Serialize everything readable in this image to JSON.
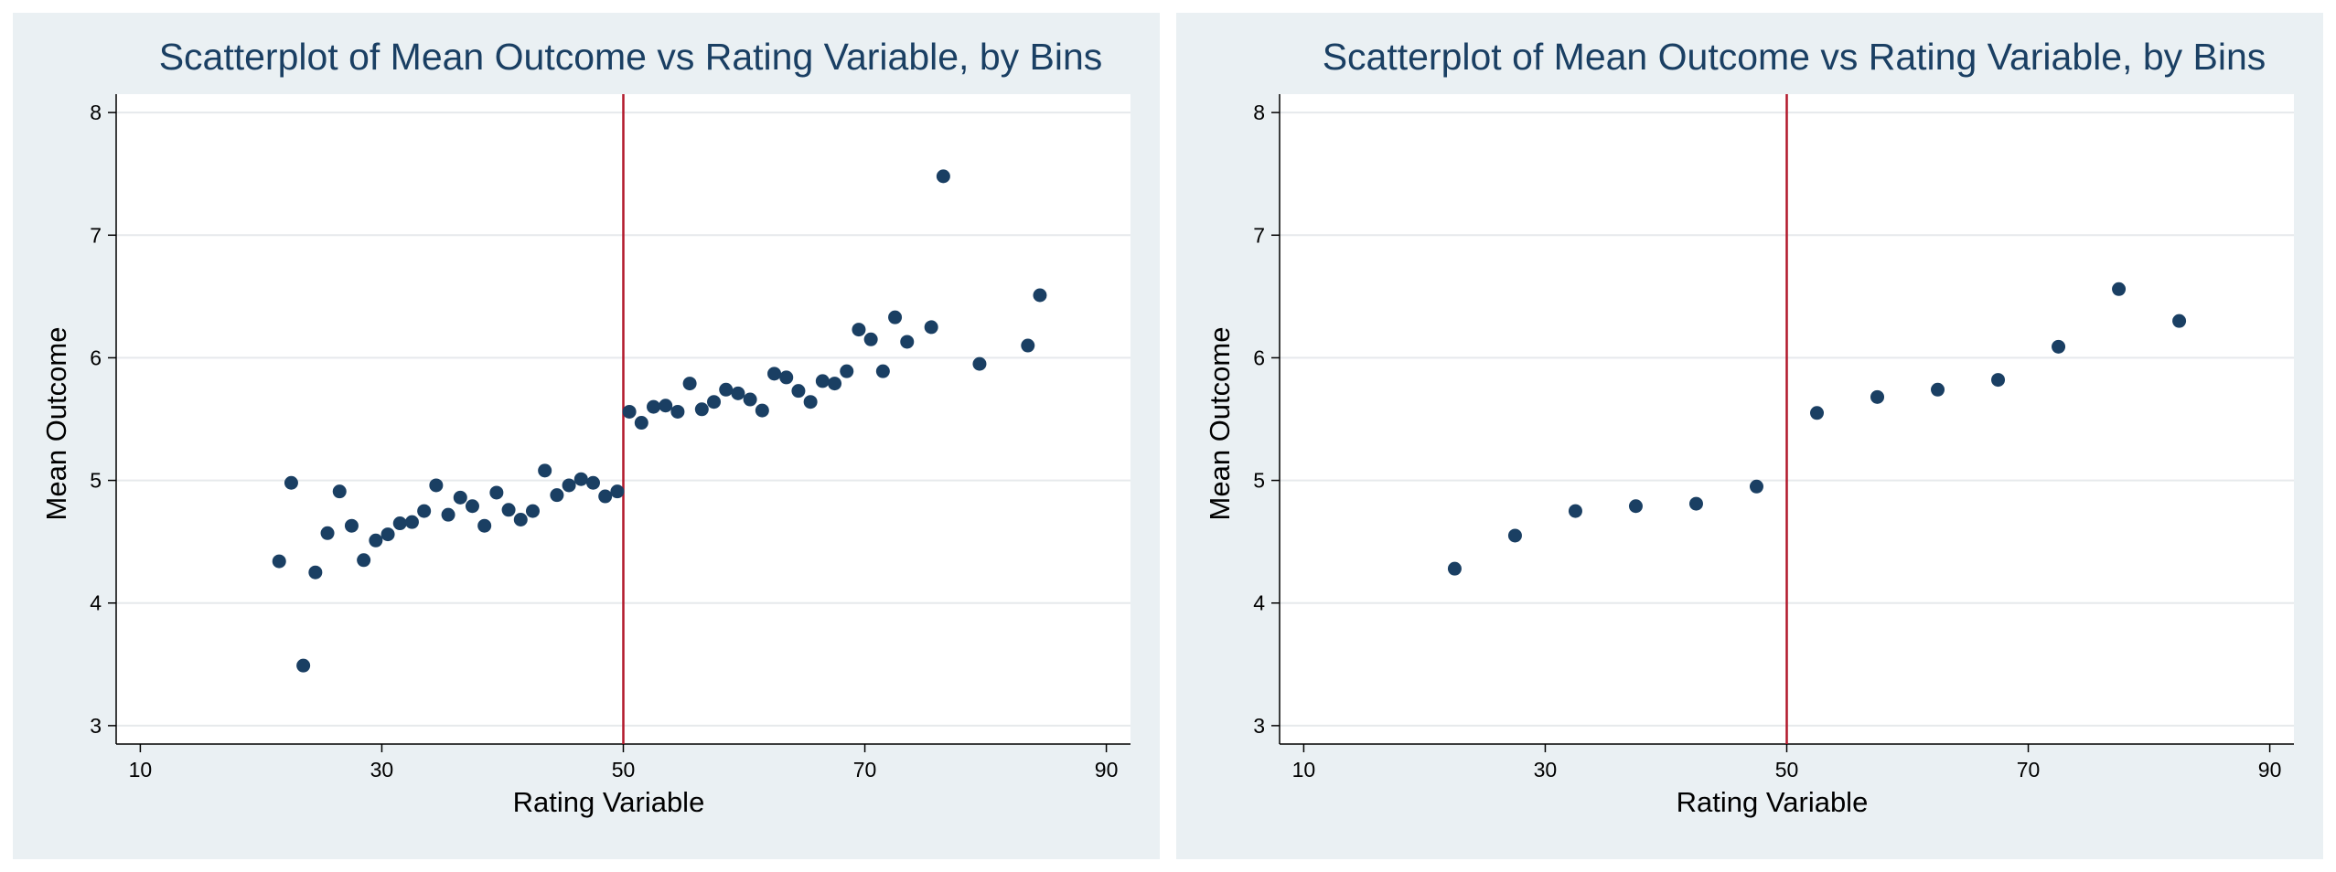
{
  "chart_data": [
    {
      "type": "scatter",
      "title": "Scatterplot of Mean Outcome vs Rating Variable, by Bins",
      "xlabel": "Rating Variable",
      "ylabel": "Mean Outcome",
      "xlim": [
        8,
        92
      ],
      "ylim": [
        2.85,
        8.15
      ],
      "x_ticks": [
        10,
        30,
        50,
        70,
        90
      ],
      "y_ticks": [
        3,
        4,
        5,
        6,
        7,
        8
      ],
      "cutoff": 50,
      "grid": true,
      "legend": "none",
      "colors": {
        "points": "#1A3F63",
        "cutoff_line": "#B2182B",
        "title": "#1A3F63",
        "grid": "#E6E9EC",
        "panel_bg": "#EAF0F3"
      },
      "points": [
        [
          21.5,
          4.34
        ],
        [
          22.5,
          4.98
        ],
        [
          23.5,
          3.49
        ],
        [
          24.5,
          4.25
        ],
        [
          25.5,
          4.57
        ],
        [
          26.5,
          4.91
        ],
        [
          27.5,
          4.63
        ],
        [
          28.5,
          4.35
        ],
        [
          29.5,
          4.51
        ],
        [
          30.5,
          4.56
        ],
        [
          31.5,
          4.65
        ],
        [
          32.5,
          4.66
        ],
        [
          33.5,
          4.75
        ],
        [
          34.5,
          4.96
        ],
        [
          35.5,
          4.72
        ],
        [
          36.5,
          4.86
        ],
        [
          37.5,
          4.79
        ],
        [
          38.5,
          4.63
        ],
        [
          39.5,
          4.9
        ],
        [
          40.5,
          4.76
        ],
        [
          41.5,
          4.68
        ],
        [
          42.5,
          4.75
        ],
        [
          43.5,
          5.08
        ],
        [
          44.5,
          4.88
        ],
        [
          45.5,
          4.96
        ],
        [
          46.5,
          5.01
        ],
        [
          47.5,
          4.98
        ],
        [
          48.5,
          4.87
        ],
        [
          49.5,
          4.91
        ],
        [
          50.5,
          5.56
        ],
        [
          51.5,
          5.47
        ],
        [
          52.5,
          5.6
        ],
        [
          53.5,
          5.61
        ],
        [
          54.5,
          5.56
        ],
        [
          55.5,
          5.79
        ],
        [
          56.5,
          5.58
        ],
        [
          57.5,
          5.64
        ],
        [
          58.5,
          5.74
        ],
        [
          59.5,
          5.71
        ],
        [
          60.5,
          5.66
        ],
        [
          61.5,
          5.57
        ],
        [
          62.5,
          5.87
        ],
        [
          63.5,
          5.84
        ],
        [
          64.5,
          5.73
        ],
        [
          65.5,
          5.64
        ],
        [
          66.5,
          5.81
        ],
        [
          67.5,
          5.79
        ],
        [
          68.5,
          5.89
        ],
        [
          69.5,
          6.23
        ],
        [
          70.5,
          6.15
        ],
        [
          71.5,
          5.89
        ],
        [
          72.5,
          6.33
        ],
        [
          73.5,
          6.13
        ],
        [
          75.5,
          6.25
        ],
        [
          76.5,
          7.48
        ],
        [
          79.5,
          5.95
        ],
        [
          83.5,
          6.1
        ],
        [
          84.5,
          6.51
        ]
      ]
    },
    {
      "type": "scatter",
      "title": "Scatterplot of Mean Outcome vs Rating Variable, by Bins",
      "xlabel": "Rating Variable",
      "ylabel": "Mean Outcome",
      "xlim": [
        8,
        92
      ],
      "ylim": [
        2.85,
        8.15
      ],
      "x_ticks": [
        10,
        30,
        50,
        70,
        90
      ],
      "y_ticks": [
        3,
        4,
        5,
        6,
        7,
        8
      ],
      "cutoff": 50,
      "grid": true,
      "legend": "none",
      "colors": {
        "points": "#1A3F63",
        "cutoff_line": "#B2182B",
        "title": "#1A3F63",
        "grid": "#E6E9EC",
        "panel_bg": "#EAF0F3"
      },
      "points": [
        [
          22.5,
          4.28
        ],
        [
          27.5,
          4.55
        ],
        [
          32.5,
          4.75
        ],
        [
          37.5,
          4.79
        ],
        [
          42.5,
          4.81
        ],
        [
          47.5,
          4.95
        ],
        [
          52.5,
          5.55
        ],
        [
          57.5,
          5.68
        ],
        [
          62.5,
          5.74
        ],
        [
          67.5,
          5.82
        ],
        [
          72.5,
          6.09
        ],
        [
          77.5,
          6.56
        ],
        [
          82.5,
          6.3
        ]
      ]
    }
  ]
}
